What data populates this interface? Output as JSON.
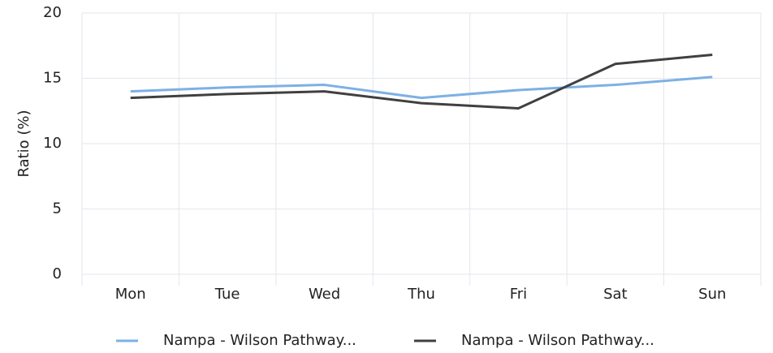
{
  "chart_data": {
    "type": "line",
    "categories": [
      "Mon",
      "Tue",
      "Wed",
      "Thu",
      "Fri",
      "Sat",
      "Sun"
    ],
    "series": [
      {
        "name": "Nampa - Wilson Pathway...",
        "color": "#7eb0e4",
        "values": [
          14.0,
          14.3,
          14.5,
          13.5,
          14.1,
          14.5,
          15.1
        ]
      },
      {
        "name": "Nampa - Wilson Pathway...",
        "color": "#404040",
        "values": [
          13.5,
          13.8,
          14.0,
          13.1,
          12.7,
          16.1,
          16.8
        ]
      }
    ],
    "y_label": "Ratio (%)",
    "ylim": [
      0,
      20
    ],
    "yticks": [
      0,
      5,
      10,
      15,
      20
    ],
    "grid": true,
    "legend": "bottom"
  }
}
